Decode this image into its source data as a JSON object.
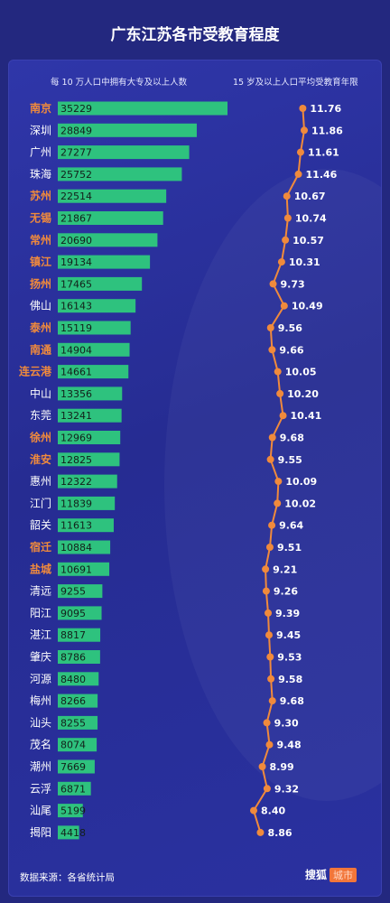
{
  "chart_data": {
    "type": "bar",
    "title": "广东江苏各市受教育程度",
    "left_header": "每 10 万人口中拥有大专及以上人数",
    "right_header": "15 岁及以上人口平均受教育年限",
    "source": "数据来源：各省统计局",
    "logo": "搜狐",
    "logo_tag": "城市",
    "colors": {
      "bar": "#2ec27e",
      "line": "#f08a3c",
      "jiangsu_label": "#f08a3c",
      "guangdong_label": "#ffffff"
    },
    "series": [
      {
        "name": "每 10 万人口中拥有大专及以上人数",
        "type": "bar",
        "values": [
          35229,
          28849,
          27277,
          25752,
          22514,
          21867,
          20690,
          19134,
          17465,
          16143,
          15119,
          14904,
          14661,
          13356,
          13241,
          12969,
          12825,
          12322,
          11839,
          11613,
          10884,
          10691,
          9255,
          9095,
          8817,
          8786,
          8480,
          8266,
          8255,
          8074,
          7669,
          6871,
          5199,
          4418
        ]
      },
      {
        "name": "15 岁及以上人口平均受教育年限",
        "type": "line",
        "values": [
          11.76,
          11.86,
          11.61,
          11.46,
          10.67,
          10.74,
          10.57,
          10.31,
          9.73,
          10.49,
          9.56,
          9.66,
          10.05,
          10.2,
          10.41,
          9.68,
          9.55,
          10.09,
          10.02,
          9.64,
          9.51,
          9.21,
          9.26,
          9.39,
          9.45,
          9.53,
          9.58,
          9.68,
          9.3,
          9.48,
          8.99,
          9.32,
          8.4,
          8.86
        ]
      }
    ],
    "categories": [
      "南京",
      "深圳",
      "广州",
      "珠海",
      "苏州",
      "无锡",
      "常州",
      "镇江",
      "扬州",
      "佛山",
      "泰州",
      "南通",
      "连云港",
      "中山",
      "东莞",
      "徐州",
      "淮安",
      "惠州",
      "江门",
      "韶关",
      "宿迁",
      "盐城",
      "清远",
      "阳江",
      "湛江",
      "肇庆",
      "河源",
      "梅州",
      "汕头",
      "茂名",
      "潮州",
      "云浮",
      "汕尾",
      "揭阳"
    ],
    "province": [
      "江苏",
      "广东",
      "广东",
      "广东",
      "江苏",
      "江苏",
      "江苏",
      "江苏",
      "江苏",
      "广东",
      "江苏",
      "江苏",
      "江苏",
      "广东",
      "广东",
      "江苏",
      "江苏",
      "广东",
      "广东",
      "广东",
      "江苏",
      "江苏",
      "广东",
      "广东",
      "广东",
      "广东",
      "广东",
      "广东",
      "广东",
      "广东",
      "广东",
      "广东",
      "广东",
      "广东"
    ]
  }
}
